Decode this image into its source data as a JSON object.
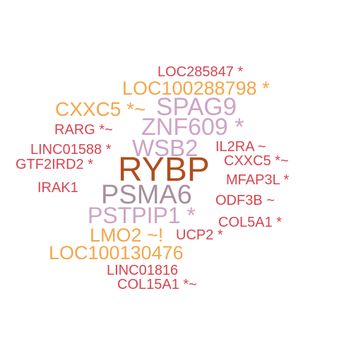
{
  "palette": {
    "red": "#d9434f",
    "orange": "#f5a64a",
    "pink": "#cfa3c5",
    "mauve": "#a98f9f",
    "brown": "#b04e1d"
  },
  "words": [
    {
      "text": "LOC285847 *",
      "color": "red"
    },
    {
      "text": "LOC100288798 *",
      "color": "orange"
    },
    {
      "text": "CXXC5 *~",
      "color": "orange"
    },
    {
      "text": "SPAG9",
      "color": "pink"
    },
    {
      "text": "ZNF609 *",
      "color": "pink"
    },
    {
      "text": "RARG *~",
      "color": "red"
    },
    {
      "text": "LINC01588 *",
      "color": "red"
    },
    {
      "text": "WSB2",
      "color": "pink"
    },
    {
      "text": "IL2RA ~",
      "color": "red"
    },
    {
      "text": "GTF2IRD2 *",
      "color": "red"
    },
    {
      "text": "CXXC5 *~",
      "color": "red"
    },
    {
      "text": "RYBP",
      "color": "brown"
    },
    {
      "text": "MFAP3L *",
      "color": "red"
    },
    {
      "text": "IRAK1",
      "color": "red"
    },
    {
      "text": "PSMA6",
      "color": "mauve"
    },
    {
      "text": "ODF3B ~",
      "color": "red"
    },
    {
      "text": "PSTPIP1 *",
      "color": "pink"
    },
    {
      "text": "COL5A1 *",
      "color": "red"
    },
    {
      "text": "LMO2 ~!",
      "color": "orange"
    },
    {
      "text": "UCP2 *",
      "color": "red"
    },
    {
      "text": "LOC100130476",
      "color": "orange"
    },
    {
      "text": "LINC01816",
      "color": "red"
    },
    {
      "text": "COL15A1 *~",
      "color": "red"
    }
  ]
}
